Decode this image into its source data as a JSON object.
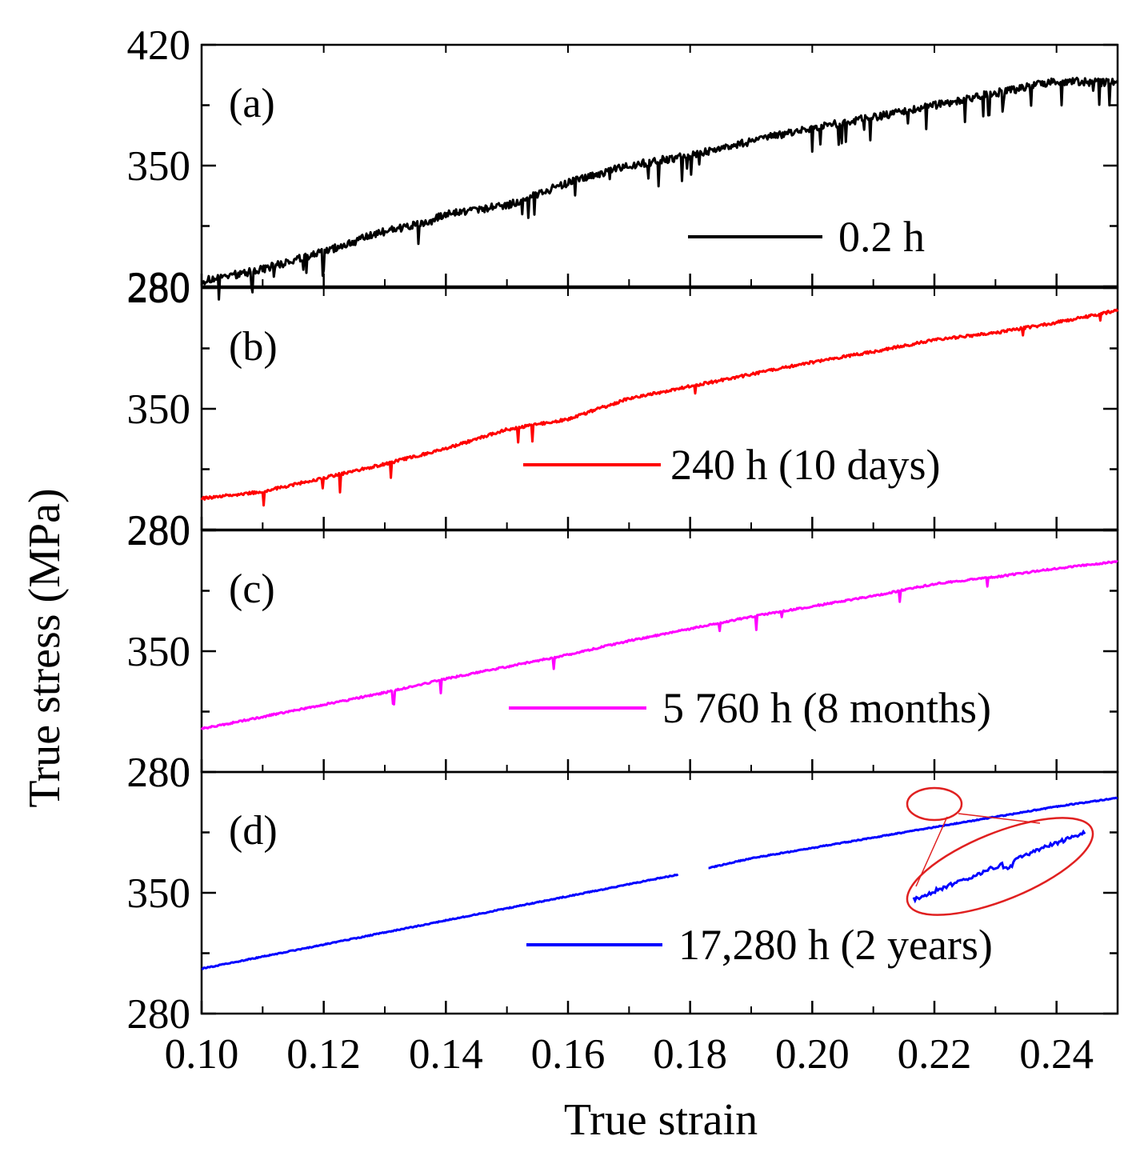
{
  "chart_data": {
    "type": "line",
    "layout": "stacked-panels",
    "xlabel": "True strain",
    "ylabel": "True stress (MPa)",
    "xlim": [
      0.1,
      0.25
    ],
    "x_ticks": [
      0.1,
      0.12,
      0.14,
      0.16,
      0.18,
      0.2,
      0.22,
      0.24
    ],
    "x_tick_labels": [
      "0.10",
      "0.12",
      "0.14",
      "0.16",
      "0.18",
      "0.20",
      "0.22",
      "0.24"
    ],
    "ylim": [
      280,
      420
    ],
    "y_tick_labels": [
      "280",
      "350",
      "420"
    ],
    "panels": [
      {
        "label": "(a)",
        "legend": "0.2 h",
        "color": "#000000",
        "serrations": "strong",
        "x": [
          0.1,
          0.11,
          0.12,
          0.13,
          0.137,
          0.14,
          0.15,
          0.16,
          0.17,
          0.18,
          0.19,
          0.2,
          0.21,
          0.22,
          0.23,
          0.24,
          0.25
        ],
        "y": [
          283,
          290,
          300,
          312,
          317,
          322,
          327,
          340,
          350,
          356,
          364,
          372,
          378,
          385,
          392,
          399,
          398
        ]
      },
      {
        "label": "(b)",
        "legend": "240 h (10 days)",
        "color": "#ff0000",
        "serrations": "moderate",
        "x": [
          0.1,
          0.11,
          0.12,
          0.13,
          0.14,
          0.15,
          0.16,
          0.17,
          0.18,
          0.19,
          0.2,
          0.21,
          0.22,
          0.23,
          0.24,
          0.25
        ],
        "y": [
          298,
          302,
          310,
          318,
          327,
          338,
          344,
          356,
          363,
          370,
          377,
          383,
          390,
          394,
          400,
          407
        ]
      },
      {
        "label": "(c)",
        "legend": "5 760 h (8 months)",
        "color": "#ff00ff",
        "serrations": "weak",
        "x": [
          0.1,
          0.11,
          0.12,
          0.13,
          0.14,
          0.15,
          0.16,
          0.17,
          0.18,
          0.19,
          0.2,
          0.21,
          0.22,
          0.23,
          0.24,
          0.25
        ],
        "y": [
          305,
          312,
          319,
          326,
          334,
          341,
          348,
          356,
          363,
          370,
          376,
          382,
          389,
          393,
          398,
          402
        ]
      },
      {
        "label": "(d)",
        "legend": "17,280 h (2 years)",
        "color": "#0000ff",
        "serrations": "none",
        "x": [
          0.1,
          0.11,
          0.12,
          0.13,
          0.14,
          0.15,
          0.16,
          0.17,
          0.18,
          0.19,
          0.2,
          0.21,
          0.22,
          0.23,
          0.24,
          0.25
        ],
        "y": [
          306,
          313,
          320,
          327,
          334,
          341,
          348,
          355,
          362,
          370,
          376,
          382,
          388,
          394,
          400,
          405
        ],
        "gap": [
          0.178,
          0.183
        ],
        "inset": {
          "annotation": "zoomed view of circled region",
          "x_range": [
            0.216,
            0.226
          ]
        }
      }
    ]
  }
}
